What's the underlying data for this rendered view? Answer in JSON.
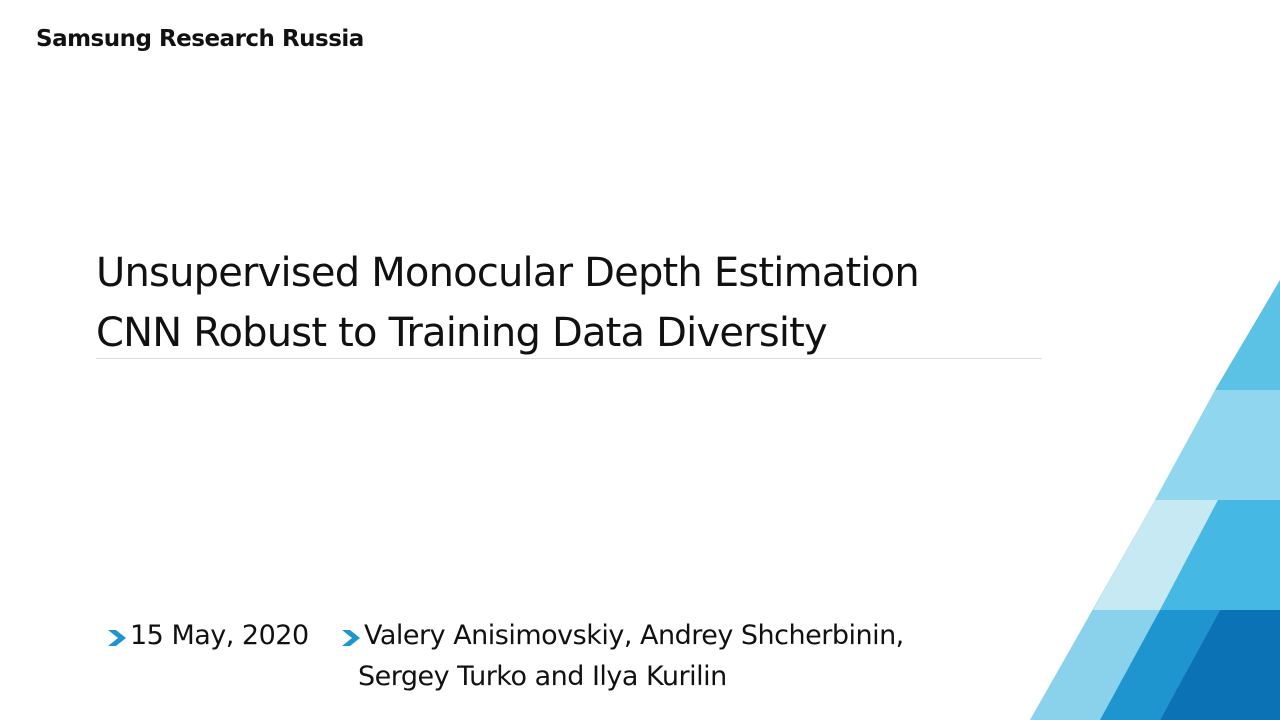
{
  "header": {
    "brand": "Samsung Research Russia"
  },
  "title": {
    "line1": "Unsupervised Monocular Depth Estimation",
    "line2": "CNN Robust to Training Data Diversity"
  },
  "footer": {
    "date": "15 May, 2020",
    "authors_line1": "Valery Anisimovskiy, Andrey Shcherbinin,",
    "authors_line2": "Sergey Turko and Ilya Kurilin"
  }
}
